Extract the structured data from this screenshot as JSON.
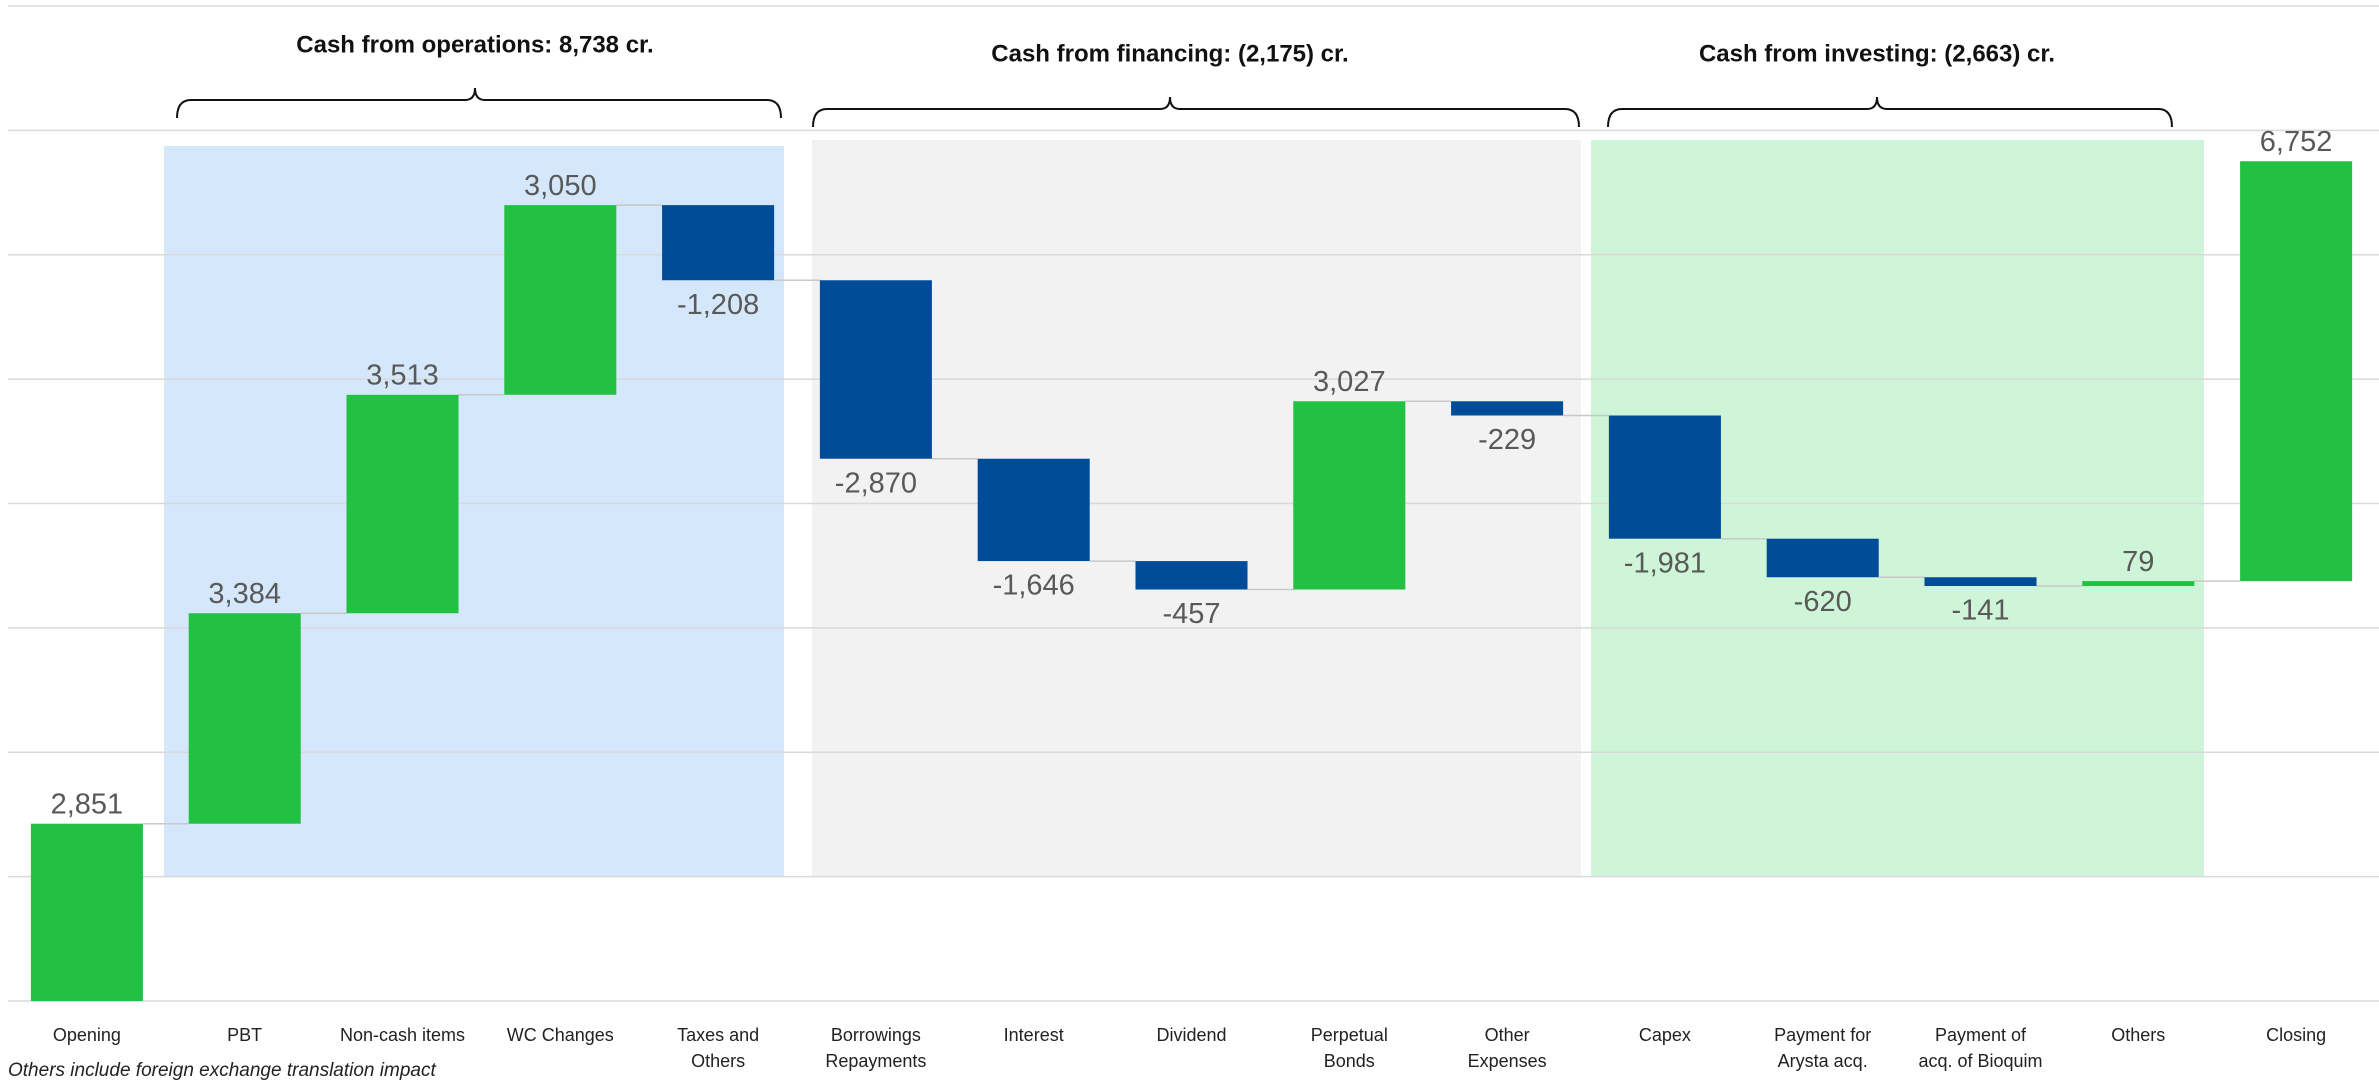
{
  "chart_data": {
    "type": "waterfall",
    "categories": [
      "Opening",
      "PBT",
      "Non-cash items",
      "WC Changes",
      "Taxes and Others",
      "Borrowings Repayments",
      "Interest",
      "Dividend",
      "Perpetual Bonds",
      "Other Expenses",
      "Capex",
      "Payment for Arysta acq.",
      "Payment of acq. of Bioquim",
      "Others",
      "Closing"
    ],
    "values": [
      2851,
      3384,
      3513,
      3050,
      -1208,
      -2870,
      -1646,
      -457,
      3027,
      -229,
      -1981,
      -620,
      -141,
      79,
      6752
    ],
    "value_labels": [
      "2,851",
      "3,384",
      "3,513",
      "3,050",
      "-1,208",
      "-2,870",
      "-1,646",
      "-457",
      "3,027",
      "-229",
      "-1,981",
      "-620",
      "-141",
      "79",
      "6,752"
    ],
    "increase_color": "#22c043",
    "decrease_color": "#004c99",
    "ylim": [
      0,
      16000
    ],
    "yticks": [
      0,
      2000,
      4000,
      6000,
      8000,
      10000,
      12000,
      14000,
      16000
    ],
    "grid": true,
    "groups": [
      {
        "label": "Cash from operations: 8,738 cr.",
        "color": "#d5e8fb"
      },
      {
        "label": "Cash from financing: (2,175) cr.",
        "color": "#f2f2f2"
      },
      {
        "label": "Cash from investing: (2,663) cr.",
        "color": "#cff5d8"
      }
    ],
    "footnote": "Others include foreign exchange translation impact"
  }
}
